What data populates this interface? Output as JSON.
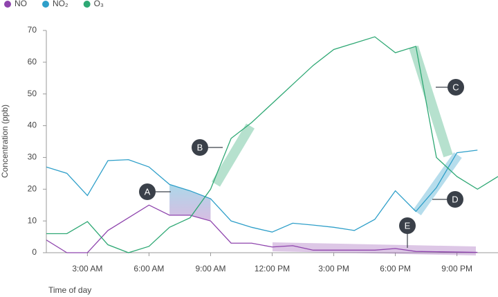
{
  "chart_data": {
    "type": "line",
    "y_label": "Concentration (ppb)",
    "x_label": "Time of day",
    "x": [
      1,
      2,
      3,
      4,
      5,
      6,
      7,
      8,
      9,
      10,
      11,
      12,
      13,
      14,
      15,
      16,
      17,
      18,
      19,
      20,
      21,
      22,
      23
    ],
    "series": [
      {
        "name": "NO",
        "color": "#8e44ad",
        "values": [
          4,
          0,
          0,
          7,
          11,
          15,
          11.8,
          11.8,
          10,
          3,
          3,
          1.8,
          2.2,
          0.8,
          0.8,
          0.8,
          0.8,
          1.3,
          0.4,
          0.3,
          0.2,
          0.1,
          null
        ]
      },
      {
        "name": "NO₂",
        "color": "#2e9fc9",
        "values": [
          27,
          25,
          18,
          29,
          29.3,
          27,
          21.5,
          19.5,
          17,
          10,
          8,
          6.5,
          9.3,
          8.7,
          8,
          7,
          10.5,
          19.5,
          13,
          20.5,
          31.5,
          32.3,
          null
        ]
      },
      {
        "name": "O₃",
        "color": "#2ea874",
        "values": [
          6,
          6,
          9.8,
          2.5,
          0,
          2,
          8,
          11,
          20,
          36,
          41,
          47,
          53,
          59,
          64,
          66,
          68,
          63,
          65,
          30,
          24,
          20,
          24
        ]
      }
    ],
    "xlim": [
      1,
      23
    ],
    "ylim": [
      0,
      70
    ],
    "xticks": [
      {
        "value": 3,
        "label": "3:00 AM"
      },
      {
        "value": 6,
        "label": "6:00 AM"
      },
      {
        "value": 9,
        "label": "9:00 AM"
      },
      {
        "value": 12,
        "label": "12:00 PM"
      },
      {
        "value": 15,
        "label": "3:00 PM"
      },
      {
        "value": 18,
        "label": "6:00 PM"
      },
      {
        "value": 21,
        "label": "9:00 PM"
      }
    ],
    "yticks": [
      0,
      10,
      20,
      30,
      40,
      50,
      60,
      70
    ],
    "annotations": [
      "A",
      "B",
      "C",
      "D",
      "E"
    ]
  }
}
